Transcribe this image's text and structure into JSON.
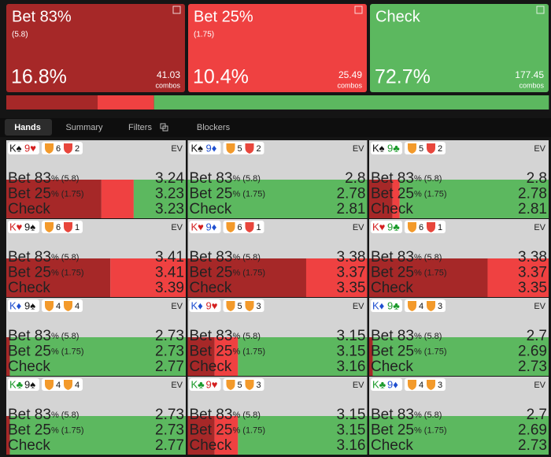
{
  "actions": [
    {
      "name": "Bet 83%",
      "size": "(5.8)",
      "frequency": 16.8,
      "frequency_label": "16.8%",
      "combos": 41.03,
      "combos_label": "combos",
      "color": "#a62828"
    },
    {
      "name": "Bet 25%",
      "size": "(1.75)",
      "frequency": 10.4,
      "frequency_label": "10.4%",
      "combos": 25.49,
      "combos_label": "combos",
      "color": "#ef4141"
    },
    {
      "name": "Check",
      "frequency": 72.7,
      "frequency_label": "72.7%",
      "combos": 177.45,
      "combos_label": "combos",
      "color": "#5cb85f"
    }
  ],
  "tabs": [
    "Hands",
    "Summary",
    "Filters",
    "Blockers"
  ],
  "ev_label": "EV",
  "hand_rows": [
    {
      "name": "Bet 83",
      "suffix": "% (5.8)"
    },
    {
      "name": "Bet 25",
      "suffix": "% (1.75)"
    },
    {
      "name": "Check"
    }
  ],
  "hands": [
    {
      "cards": [
        "K♠",
        "9♥"
      ],
      "badges": [
        {
          "value": 6,
          "color": "#f39a2b"
        },
        {
          "value": 2,
          "color": "#e8463c"
        }
      ],
      "ev": [
        3.24,
        3.23,
        3.23
      ],
      "strategy": [
        53,
        18,
        29
      ]
    },
    {
      "cards": [
        "K♠",
        "9♦"
      ],
      "badges": [
        {
          "value": 5,
          "color": "#f39a2b"
        },
        {
          "value": 2,
          "color": "#e8463c"
        }
      ],
      "ev": [
        2.8,
        2.78,
        2.81
      ],
      "strategy": [
        0,
        0,
        100
      ]
    },
    {
      "cards": [
        "K♠",
        "9♣"
      ],
      "badges": [
        {
          "value": 5,
          "color": "#f39a2b"
        },
        {
          "value": 2,
          "color": "#e8463c"
        }
      ],
      "ev": [
        2.8,
        2.78,
        2.81
      ],
      "strategy": [
        13,
        4,
        83
      ]
    },
    {
      "cards": [
        "K♥",
        "9♠"
      ],
      "badges": [
        {
          "value": 6,
          "color": "#f39a2b"
        },
        {
          "value": 1,
          "color": "#e8463c"
        }
      ],
      "ev": [
        3.41,
        3.41,
        3.39
      ],
      "strategy": [
        58,
        42,
        0
      ]
    },
    {
      "cards": [
        "K♥",
        "9♦"
      ],
      "badges": [
        {
          "value": 6,
          "color": "#f39a2b"
        },
        {
          "value": 1,
          "color": "#e8463c"
        }
      ],
      "ev": [
        3.38,
        3.37,
        3.35
      ],
      "strategy": [
        66,
        34,
        0
      ]
    },
    {
      "cards": [
        "K♥",
        "9♣"
      ],
      "badges": [
        {
          "value": 6,
          "color": "#f39a2b"
        },
        {
          "value": 1,
          "color": "#e8463c"
        }
      ],
      "ev": [
        3.38,
        3.37,
        3.35
      ],
      "strategy": [
        66,
        34,
        0
      ]
    },
    {
      "cards": [
        "K♦",
        "9♠"
      ],
      "badges": [
        {
          "value": 4,
          "color": "#f39a2b"
        },
        {
          "value": 4,
          "color": "#f39a2b"
        }
      ],
      "ev": [
        2.73,
        2.73,
        2.77
      ],
      "strategy": [
        2,
        0,
        98
      ]
    },
    {
      "cards": [
        "K♦",
        "9♥"
      ],
      "badges": [
        {
          "value": 5,
          "color": "#f39a2b"
        },
        {
          "value": 3,
          "color": "#f39a2b"
        }
      ],
      "ev": [
        3.15,
        3.15,
        3.16
      ],
      "strategy": [
        15,
        13,
        72
      ]
    },
    {
      "cards": [
        "K♦",
        "9♣"
      ],
      "badges": [
        {
          "value": 4,
          "color": "#f39a2b"
        },
        {
          "value": 3,
          "color": "#f39a2b"
        }
      ],
      "ev": [
        2.7,
        2.69,
        2.73
      ],
      "strategy": [
        2,
        0,
        98
      ]
    },
    {
      "cards": [
        "K♣",
        "9♠"
      ],
      "badges": [
        {
          "value": 4,
          "color": "#f39a2b"
        },
        {
          "value": 4,
          "color": "#f39a2b"
        }
      ],
      "ev": [
        2.73,
        2.73,
        2.77
      ],
      "strategy": [
        2,
        0,
        98
      ]
    },
    {
      "cards": [
        "K♣",
        "9♥"
      ],
      "badges": [
        {
          "value": 5,
          "color": "#f39a2b"
        },
        {
          "value": 3,
          "color": "#f39a2b"
        }
      ],
      "ev": [
        3.15,
        3.15,
        3.16
      ],
      "strategy": [
        15,
        13,
        72
      ]
    },
    {
      "cards": [
        "K♣",
        "9♦"
      ],
      "badges": [
        {
          "value": 4,
          "color": "#f39a2b"
        },
        {
          "value": 3,
          "color": "#f39a2b"
        }
      ],
      "ev": [
        2.7,
        2.69,
        2.73
      ],
      "strategy": [
        0,
        0,
        100
      ]
    }
  ]
}
